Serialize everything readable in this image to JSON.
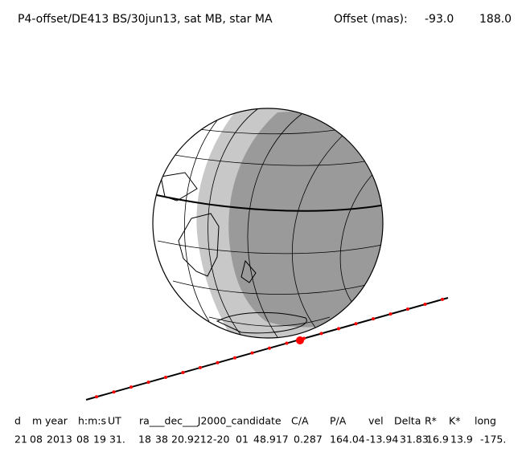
{
  "header": {
    "title": "P4-offset/DE413 BS/30jun13, sat MB, star MA",
    "offset_label": "Offset (mas):",
    "offset_x": "-93.0",
    "offset_y": "188.0"
  },
  "table": {
    "headers": [
      "d",
      "m",
      "year",
      "h:m:s",
      "UT",
      "ra___dec___J2000_candidate",
      "C/A",
      "P/A",
      "vel",
      "Delta",
      "R*",
      "K*",
      "long"
    ],
    "row": [
      "21",
      "08",
      "2013",
      "08",
      "19",
      "31.",
      "18",
      "38",
      "20.9212",
      "-20",
      "01",
      "48.917",
      "0.287",
      "164.04",
      "-13.94",
      "31.83",
      "16.9",
      "13.9",
      "-175."
    ]
  }
}
